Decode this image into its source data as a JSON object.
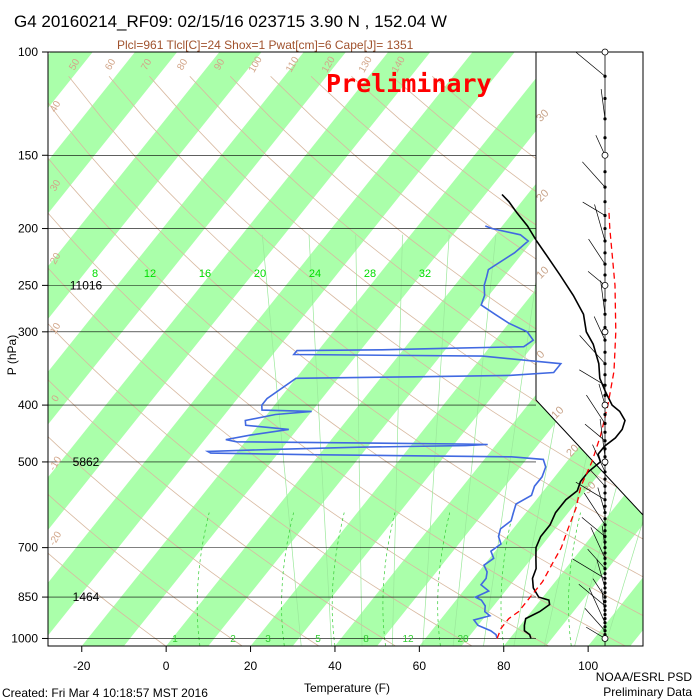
{
  "header": {
    "title": "G4 20160214_RF09: 02/15/16 023715   3.90 N , 152.04 W",
    "subtitle": "Plcl=961 Tlcl[C]=24 Shox=1 Pwat[cm]=6 Cape[J]= 1351",
    "subtitle_color": "#a0522d",
    "watermark": "Preliminary",
    "watermark_color": "#ff0000"
  },
  "footer": {
    "created": "Created: Fri Mar  4 10:18:57 MST 2016",
    "org": "NOAA/ESRL PSD",
    "org_sub": "Preliminary Data"
  },
  "chart_data": {
    "type": "line",
    "chart_kind": "skew-T log-P sounding",
    "xlabel": "Temperature (F)",
    "ylabel": "P (hPa)",
    "xlim": [
      -28,
      113
    ],
    "ylim": [
      1030,
      100
    ],
    "y_scale": "log",
    "x_ticks": [
      -20,
      0,
      20,
      40,
      60,
      80,
      100
    ],
    "y_ticks": [
      100,
      150,
      200,
      250,
      300,
      400,
      500,
      700,
      850,
      1000
    ],
    "height_labels": [
      {
        "p": 250,
        "label": "11016"
      },
      {
        "p": 500,
        "label": "5862"
      },
      {
        "p": 850,
        "label": "1464"
      }
    ],
    "isotherm_band_color": "#aaffaa",
    "isotherm_label_color": "#00dd00",
    "isotherm_labels": [
      "8",
      "12",
      "16",
      "20",
      "24",
      "28",
      "32"
    ],
    "isotherm_label_pressure": 238,
    "skewed_c_labels": [
      "30",
      "20",
      "10",
      "0",
      "10",
      "20",
      "30"
    ],
    "dry_adiabat_labels": [
      "50",
      "60",
      "70",
      "80",
      "90",
      "100",
      "110",
      "120",
      "130",
      "140",
      "40",
      "30",
      "20",
      "10",
      "0",
      "-10",
      "-20"
    ],
    "mixing_ratio_labels": [
      "1",
      "2",
      "3",
      "5",
      "8",
      "12",
      "20"
    ],
    "series": [
      {
        "role": "temperature",
        "color": "#000000",
        "points": [
          [
            85,
            1000
          ],
          [
            84,
            985
          ],
          [
            82,
            970
          ],
          [
            81,
            950
          ],
          [
            80,
            925
          ],
          [
            82,
            900
          ],
          [
            83,
            875
          ],
          [
            82,
            860
          ],
          [
            79,
            850
          ],
          [
            76,
            820
          ],
          [
            74,
            790
          ],
          [
            73,
            760
          ],
          [
            71,
            730
          ],
          [
            69,
            700
          ],
          [
            68,
            670
          ],
          [
            68,
            640
          ],
          [
            67,
            610
          ],
          [
            67,
            580
          ],
          [
            68,
            560
          ],
          [
            67,
            540
          ],
          [
            67,
            520
          ],
          [
            68,
            500
          ],
          [
            66,
            485
          ],
          [
            66,
            470
          ],
          [
            67,
            455
          ],
          [
            67,
            440
          ],
          [
            66,
            425
          ],
          [
            63,
            410
          ],
          [
            60,
            400
          ],
          [
            56,
            380
          ],
          [
            52,
            360
          ],
          [
            49,
            340
          ],
          [
            44,
            315
          ],
          [
            40,
            300
          ],
          [
            36,
            280
          ],
          [
            30,
            260
          ],
          [
            23,
            240
          ],
          [
            16,
            222
          ],
          [
            11,
            210
          ],
          [
            6,
            198
          ],
          [
            1,
            188
          ],
          [
            -3,
            180
          ],
          [
            -6,
            175
          ]
        ]
      },
      {
        "role": "dewpoint",
        "color": "#4169e1",
        "points": [
          [
            77,
            1000
          ],
          [
            76,
            985
          ],
          [
            74,
            970
          ],
          [
            70,
            950
          ],
          [
            68,
            930
          ],
          [
            71,
            915
          ],
          [
            69,
            900
          ],
          [
            68,
            880
          ],
          [
            66,
            860
          ],
          [
            64,
            850
          ],
          [
            66,
            830
          ],
          [
            63,
            810
          ],
          [
            63,
            790
          ],
          [
            62,
            770
          ],
          [
            60,
            750
          ],
          [
            61,
            730
          ],
          [
            59,
            710
          ],
          [
            60,
            690
          ],
          [
            58,
            670
          ],
          [
            57,
            650
          ],
          [
            58,
            630
          ],
          [
            57,
            610
          ],
          [
            56,
            590
          ],
          [
            58,
            570
          ],
          [
            57,
            550
          ],
          [
            57,
            530
          ],
          [
            56,
            510
          ],
          [
            54,
            495
          ],
          [
            46,
            490
          ],
          [
            20,
            488
          ],
          [
            -2,
            486
          ],
          [
            -26,
            483
          ],
          [
            -27,
            480
          ],
          [
            -12,
            476
          ],
          [
            8,
            472
          ],
          [
            33,
            469
          ],
          [
            38,
            467
          ],
          [
            32,
            466
          ],
          [
            -22,
            462
          ],
          [
            -25,
            458
          ],
          [
            -20,
            450
          ],
          [
            -12,
            440
          ],
          [
            -23,
            433
          ],
          [
            -24,
            425
          ],
          [
            -18,
            415
          ],
          [
            -10,
            410
          ],
          [
            -22,
            408
          ],
          [
            -23,
            400
          ],
          [
            -23,
            390
          ],
          [
            -20,
            360
          ],
          [
            8,
            358
          ],
          [
            30,
            356
          ],
          [
            40,
            352
          ],
          [
            40,
            340
          ],
          [
            20,
            330
          ],
          [
            -25,
            328
          ],
          [
            -25,
            323
          ],
          [
            -5,
            322
          ],
          [
            10,
            320
          ],
          [
            28,
            318
          ],
          [
            29,
            310
          ],
          [
            26,
            300
          ],
          [
            20,
            290
          ],
          [
            15,
            280
          ],
          [
            10,
            270
          ],
          [
            9,
            260
          ],
          [
            7,
            250
          ],
          [
            6,
            242
          ],
          [
            5,
            235
          ],
          [
            8,
            220
          ],
          [
            9,
            210
          ],
          [
            6,
            205
          ],
          [
            -2,
            200
          ],
          [
            -4,
            198
          ]
        ]
      },
      {
        "role": "parcel",
        "color": "#ff0000",
        "dashed": true,
        "points": [
          [
            77,
            1000
          ],
          [
            76,
            960
          ],
          [
            76,
            925
          ],
          [
            77,
            900
          ],
          [
            77,
            850
          ],
          [
            77,
            800
          ],
          [
            76,
            750
          ],
          [
            75,
            700
          ],
          [
            73,
            650
          ],
          [
            71,
            600
          ],
          [
            68,
            550
          ],
          [
            66,
            500
          ],
          [
            63,
            450
          ],
          [
            59,
            400
          ],
          [
            54,
            350
          ],
          [
            47,
            300
          ],
          [
            38,
            250
          ],
          [
            26,
            200
          ],
          [
            22,
            185
          ]
        ]
      }
    ],
    "wind_barb_pressures": [
      1000,
      985,
      970,
      955,
      940,
      925,
      910,
      895,
      880,
      865,
      850,
      835,
      820,
      805,
      790,
      775,
      760,
      745,
      730,
      715,
      700,
      685,
      670,
      655,
      640,
      625,
      610,
      595,
      580,
      565,
      550,
      535,
      520,
      505,
      490,
      475,
      460,
      445,
      430,
      415,
      400,
      385,
      370,
      355,
      340,
      325,
      310,
      295,
      280,
      265,
      250,
      240,
      230,
      220,
      210,
      200,
      190,
      180,
      170,
      160,
      150,
      140,
      130,
      120,
      110,
      100
    ]
  }
}
